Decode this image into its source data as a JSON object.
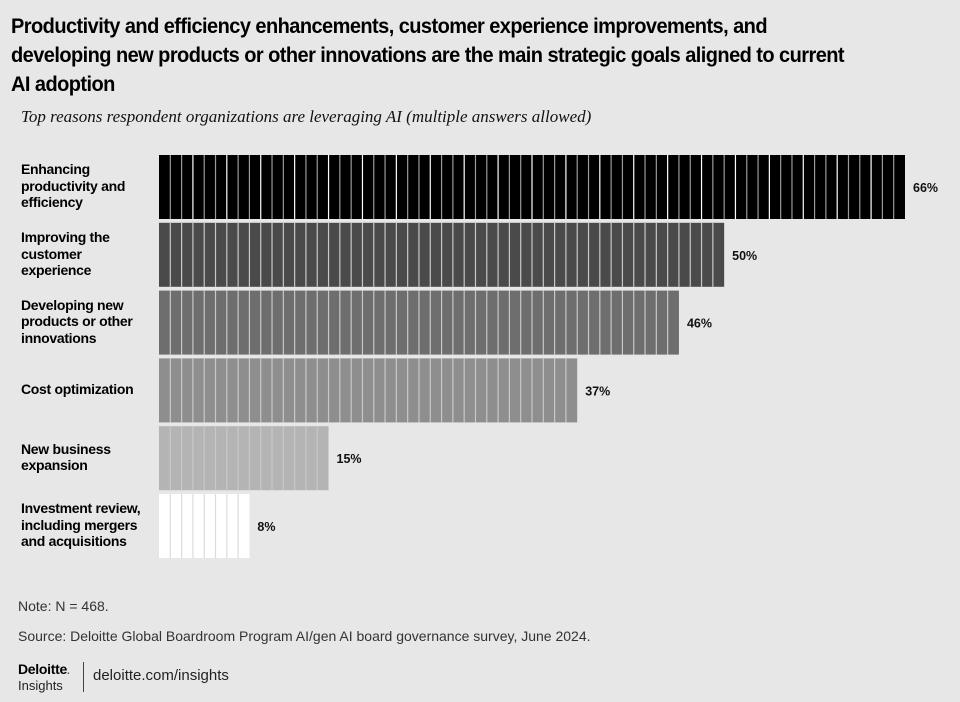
{
  "chart_data": {
    "type": "bar",
    "orientation": "horizontal",
    "title": "Productivity and efficiency enhancements, customer experience improvements, and developing new products or other innovations are the main strategic goals aligned to current AI adoption",
    "subtitle": "Top reasons respondent organizations are leveraging AI (multiple answers allowed)",
    "xlabel": "",
    "ylabel": "",
    "xlim": [
      0,
      66
    ],
    "grid": false,
    "legend": "none",
    "categories": [
      "Enhancing productivity and efficiency",
      "Improving the customer experience",
      "Developing new products or other innovations",
      "Cost optimization",
      "New business expansion",
      "Investment review, including mergers and acquisitions"
    ],
    "category_lines": [
      [
        "Enhancing",
        "productivity and",
        "efficiency"
      ],
      [
        "Improving the",
        "customer",
        "experience"
      ],
      [
        "Developing new",
        "products or other",
        "innovations"
      ],
      [
        "Cost optimization"
      ],
      [
        "New business",
        "expansion"
      ],
      [
        "Investment review,",
        "including mergers",
        "and acquisitions"
      ]
    ],
    "values": [
      66,
      50,
      46,
      37,
      15,
      8
    ],
    "value_labels": [
      "66%",
      "50%",
      "46%",
      "37%",
      "15%",
      "8%"
    ],
    "colors": [
      "#000000",
      "#4a4a4a",
      "#6e6e6e",
      "#8e8e8e",
      "#b4b4b4",
      "#ffffff"
    ]
  },
  "footer": {
    "note": "Note: N = 468.",
    "source": "Source: Deloitte Global Boardroom Program AI/gen AI board governance survey, June 2024.",
    "logo_brand": "Deloitte",
    "logo_dot": ".",
    "logo_sub": "Insights",
    "url": "deloitte.com/insights"
  }
}
